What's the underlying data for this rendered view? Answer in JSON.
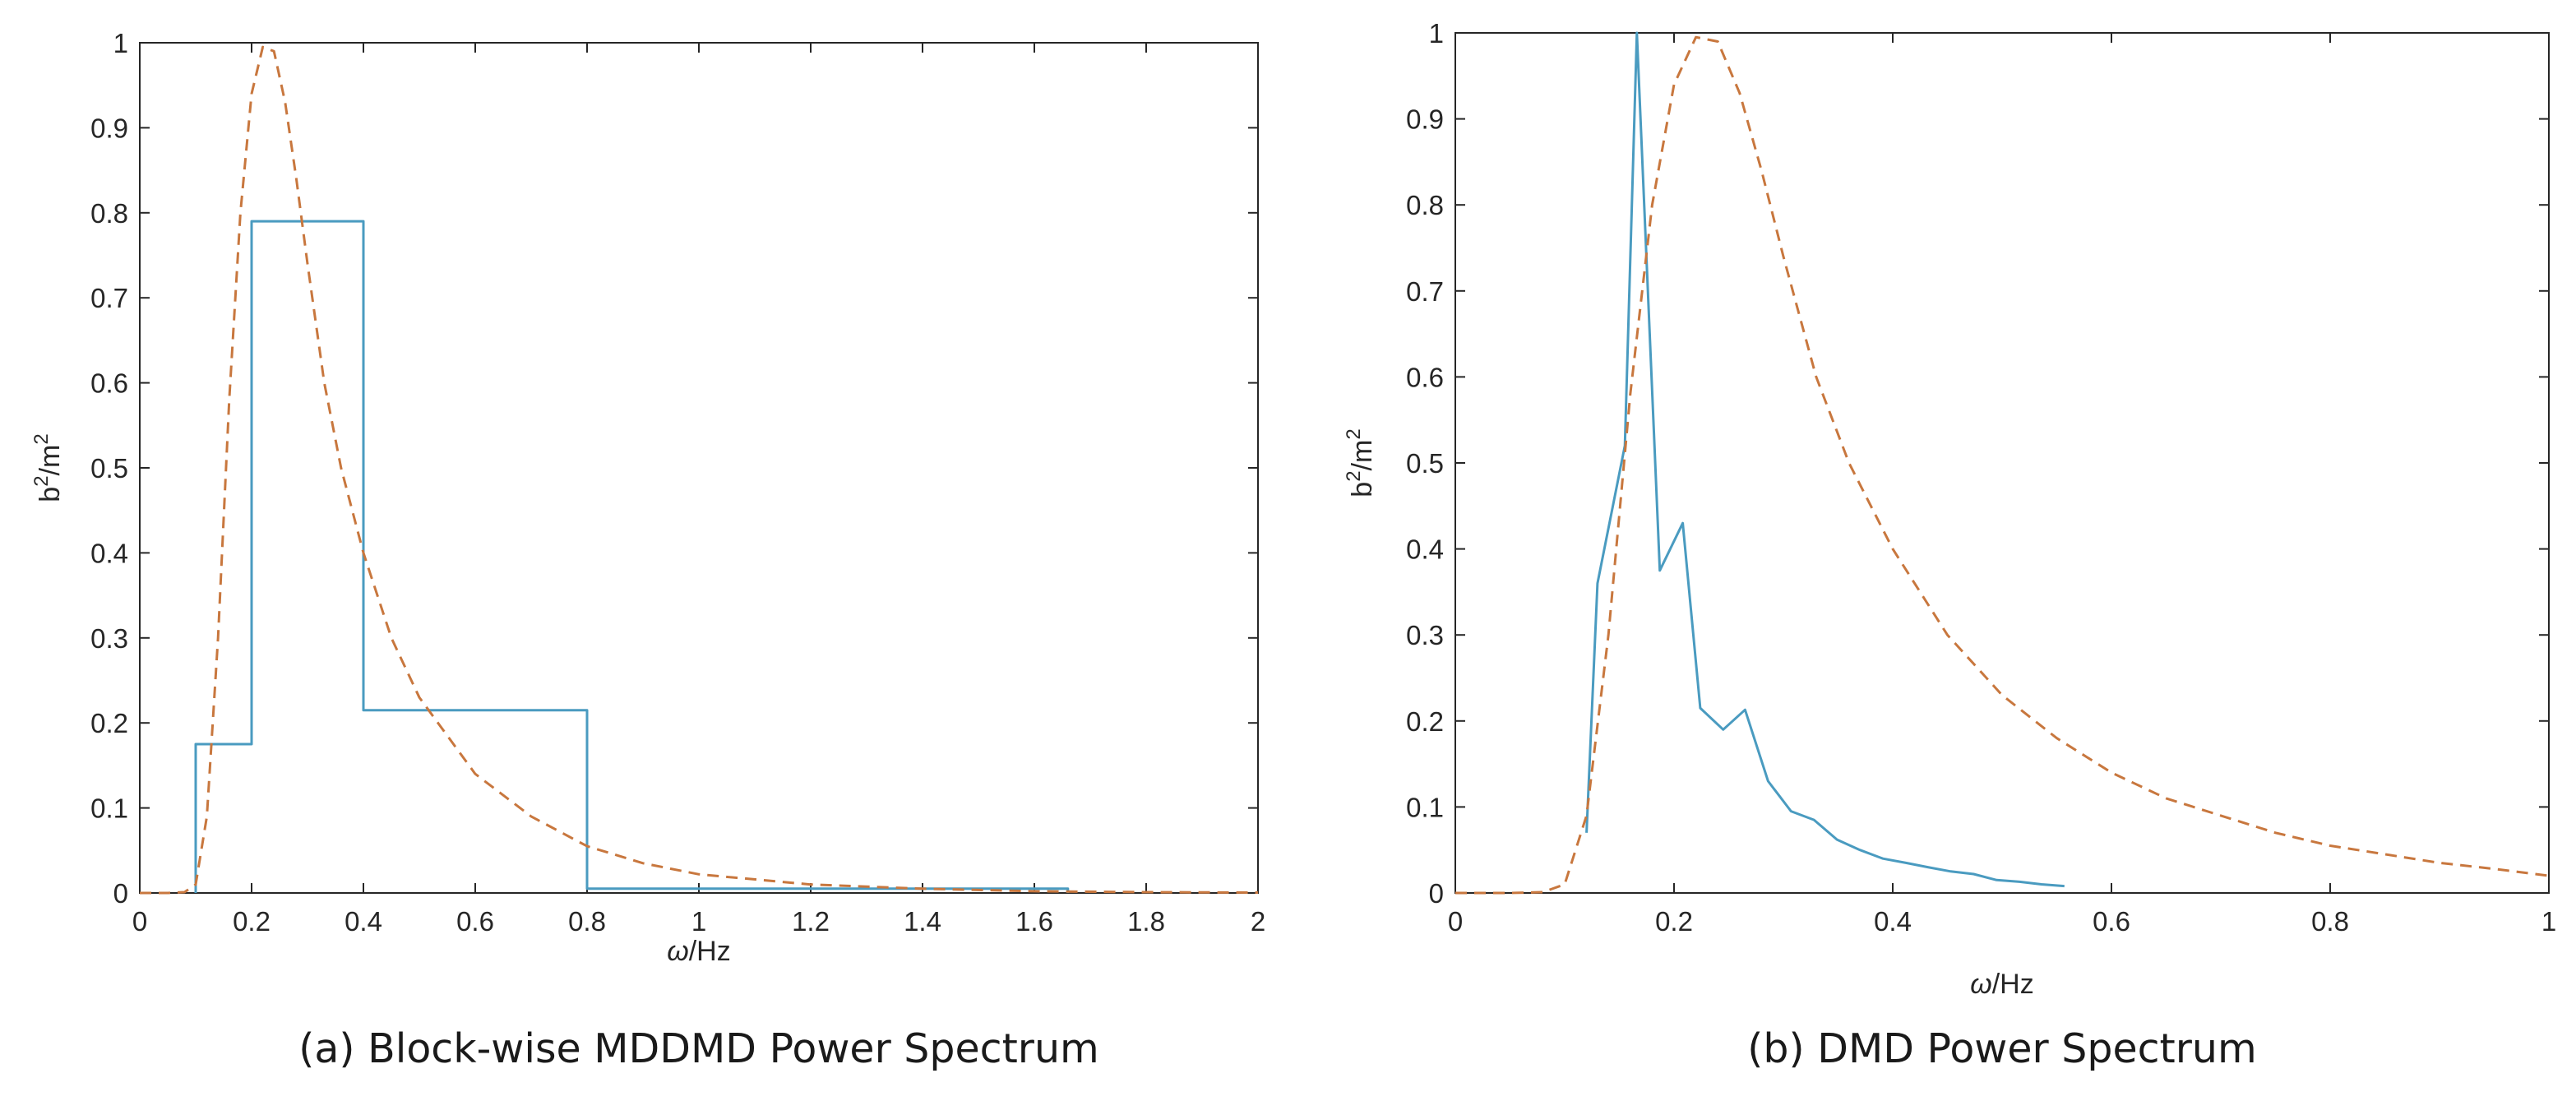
{
  "colors": {
    "series_solid": "#4a9bc0",
    "series_dashed": "#c8773e",
    "axis": "#262626"
  },
  "chart_data": [
    {
      "type": "line",
      "caption": "(a) Block-wise MDDMD Power Spectrum",
      "xlabel_symbol": "ω",
      "xlabel_unit": "/Hz",
      "ylabel_base": "b",
      "ylabel_sup1": "2",
      "ylabel_mid": "/m",
      "ylabel_sup2": "2",
      "xlim": [
        0,
        2
      ],
      "ylim": [
        0,
        1
      ],
      "xticks": [
        0,
        0.2,
        0.4,
        0.6,
        0.8,
        1,
        1.2,
        1.4,
        1.6,
        1.8,
        2
      ],
      "xtick_labels": [
        "0",
        "0.2",
        "0.4",
        "0.6",
        "0.8",
        "1",
        "1.2",
        "1.4",
        "1.6",
        "1.8",
        "2"
      ],
      "yticks": [
        0,
        0.1,
        0.2,
        0.3,
        0.4,
        0.5,
        0.6,
        0.7,
        0.8,
        0.9,
        1
      ],
      "ytick_labels": [
        "0",
        "0.1",
        "0.2",
        "0.3",
        "0.4",
        "0.5",
        "0.6",
        "0.7",
        "0.8",
        "0.9",
        "1"
      ],
      "grid": false,
      "series": [
        {
          "style": "solid",
          "x": [
            0.1,
            0.1,
            0.2,
            0.2,
            0.4,
            0.4,
            0.8,
            0.8,
            1.66,
            1.66
          ],
          "y": [
            0,
            0.175,
            0.175,
            0.79,
            0.79,
            0.215,
            0.215,
            0.005,
            0.005,
            0
          ]
        },
        {
          "style": "dashed",
          "x": [
            0,
            0.05,
            0.08,
            0.1,
            0.12,
            0.14,
            0.16,
            0.18,
            0.2,
            0.22,
            0.24,
            0.26,
            0.28,
            0.3,
            0.33,
            0.36,
            0.4,
            0.45,
            0.5,
            0.6,
            0.7,
            0.8,
            0.9,
            1.0,
            1.2,
            1.4,
            1.6,
            1.8,
            2.0
          ],
          "y": [
            0,
            0,
            0.001,
            0.01,
            0.09,
            0.3,
            0.58,
            0.8,
            0.94,
            0.995,
            0.99,
            0.93,
            0.84,
            0.74,
            0.6,
            0.5,
            0.4,
            0.3,
            0.23,
            0.14,
            0.09,
            0.055,
            0.035,
            0.022,
            0.01,
            0.005,
            0.002,
            0.001,
            0.0005
          ]
        }
      ]
    },
    {
      "type": "line",
      "caption": "(b) DMD Power Spectrum",
      "xlabel_symbol": "ω",
      "xlabel_unit": "/Hz",
      "ylabel_base": "b",
      "ylabel_sup1": "2",
      "ylabel_mid": "/m",
      "ylabel_sup2": "2",
      "xlim": [
        0,
        1
      ],
      "ylim": [
        0,
        1
      ],
      "xticks": [
        0,
        0.2,
        0.4,
        0.6,
        0.8,
        1
      ],
      "xtick_labels": [
        "0",
        "0.2",
        "0.4",
        "0.6",
        "0.8",
        "1"
      ],
      "yticks": [
        0,
        0.1,
        0.2,
        0.3,
        0.4,
        0.5,
        0.6,
        0.7,
        0.8,
        0.9,
        1
      ],
      "ytick_labels": [
        "0",
        "0.1",
        "0.2",
        "0.3",
        "0.4",
        "0.5",
        "0.6",
        "0.7",
        "0.8",
        "0.9",
        "1"
      ],
      "grid": false,
      "series": [
        {
          "style": "solid",
          "x": [
            0.12,
            0.13,
            0.155,
            0.166,
            0.187,
            0.208,
            0.224,
            0.245,
            0.265,
            0.286,
            0.307,
            0.328,
            0.349,
            0.37,
            0.391,
            0.412,
            0.432,
            0.453,
            0.474,
            0.495,
            0.516,
            0.536,
            0.557
          ],
          "y": [
            0.07,
            0.36,
            0.52,
            1.0,
            0.375,
            0.43,
            0.215,
            0.19,
            0.213,
            0.13,
            0.095,
            0.085,
            0.062,
            0.05,
            0.04,
            0.035,
            0.03,
            0.025,
            0.022,
            0.015,
            0.013,
            0.01,
            0.008
          ]
        },
        {
          "style": "dashed",
          "x": [
            0,
            0.05,
            0.08,
            0.1,
            0.12,
            0.14,
            0.16,
            0.18,
            0.2,
            0.22,
            0.24,
            0.26,
            0.28,
            0.3,
            0.33,
            0.36,
            0.4,
            0.45,
            0.5,
            0.55,
            0.6,
            0.65,
            0.7,
            0.75,
            0.8,
            0.85,
            0.9,
            0.95,
            1.0
          ],
          "y": [
            0,
            0,
            0.001,
            0.01,
            0.09,
            0.3,
            0.58,
            0.8,
            0.94,
            0.995,
            0.99,
            0.93,
            0.84,
            0.74,
            0.6,
            0.5,
            0.4,
            0.3,
            0.23,
            0.18,
            0.14,
            0.11,
            0.09,
            0.07,
            0.055,
            0.045,
            0.035,
            0.028,
            0.02
          ]
        }
      ]
    }
  ]
}
